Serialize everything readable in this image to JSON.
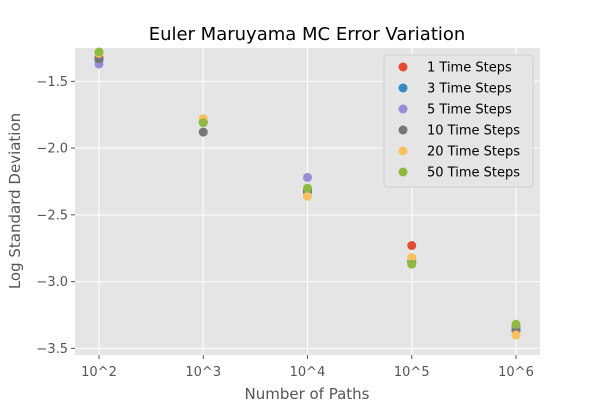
{
  "chart_data": {
    "type": "scatter",
    "title": "Euler Maruyama MC Error Variation",
    "xlabel": "Number of Paths",
    "ylabel": "Log Standard Deviation",
    "x": [
      "10^2",
      "10^3",
      "10^4",
      "10^5",
      "10^6"
    ],
    "ylim": [
      -3.55,
      -1.25
    ],
    "yticks": [
      -1.5,
      -2.0,
      -2.5,
      -3.0,
      -3.5
    ],
    "ytick_labels": [
      "−1.5",
      "−2.0",
      "−2.5",
      "−3.0",
      "−3.5"
    ],
    "grid": true,
    "legend_position": "top-right",
    "series": [
      {
        "name": "1 Time Steps",
        "color": "#E24A33",
        "values": [
          -1.32,
          -1.8,
          -2.32,
          -2.73,
          -3.35
        ]
      },
      {
        "name": "3 Time Steps",
        "color": "#348ABD",
        "values": [
          -1.34,
          -1.8,
          -2.33,
          -2.85,
          -3.36
        ]
      },
      {
        "name": "5 Time Steps",
        "color": "#988ED5",
        "values": [
          -1.37,
          -1.8,
          -2.22,
          -2.84,
          -3.34
        ]
      },
      {
        "name": "10 Time Steps",
        "color": "#777777",
        "values": [
          -1.33,
          -1.88,
          -2.31,
          -2.86,
          -3.37
        ]
      },
      {
        "name": "20 Time Steps",
        "color": "#FBC15E",
        "values": [
          -1.29,
          -1.78,
          -2.36,
          -2.82,
          -3.4
        ]
      },
      {
        "name": "50 Time Steps",
        "color": "#8EBA42",
        "values": [
          -1.28,
          -1.81,
          -2.3,
          -2.87,
          -3.32
        ]
      }
    ]
  }
}
